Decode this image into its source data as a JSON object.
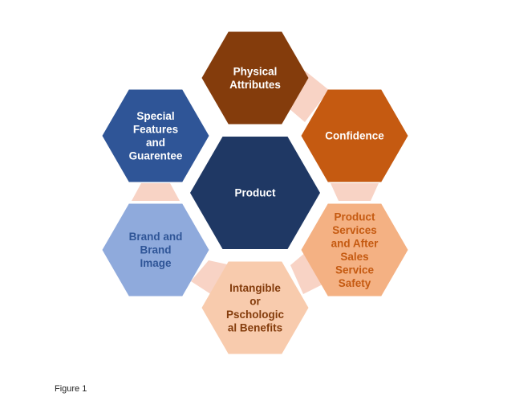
{
  "center": {
    "label": "Product",
    "color": "#1f3864",
    "text_color": "#ffffff"
  },
  "hexagons": [
    {
      "id": "physical-attributes",
      "lines": [
        "Physical",
        "Attributes"
      ],
      "color": "#843c0c",
      "text_color": "#ffffff"
    },
    {
      "id": "confidence",
      "lines": [
        "Confidence"
      ],
      "color": "#c55a11",
      "text_color": "#ffffff"
    },
    {
      "id": "product-services",
      "lines": [
        "Product",
        "Services",
        "and After",
        "Sales",
        "Service",
        "Safety"
      ],
      "color": "#f4b183",
      "text_color": "#c55a11"
    },
    {
      "id": "intangible-benefits",
      "lines": [
        "Intangible",
        "or",
        "Pschologic",
        "al Benefits"
      ],
      "color": "#f8cbad",
      "text_color": "#843c0c"
    },
    {
      "id": "brand-image",
      "lines": [
        "Brand and",
        "Brand",
        "Image"
      ],
      "color": "#8faadc",
      "text_color": "#2f5597"
    },
    {
      "id": "special-features",
      "lines": [
        "Special",
        "Features",
        "and",
        "Guarentee"
      ],
      "color": "#2f5597",
      "text_color": "#ffffff"
    }
  ],
  "connector_color": "#f8d3c5",
  "caption": "Figure 1"
}
